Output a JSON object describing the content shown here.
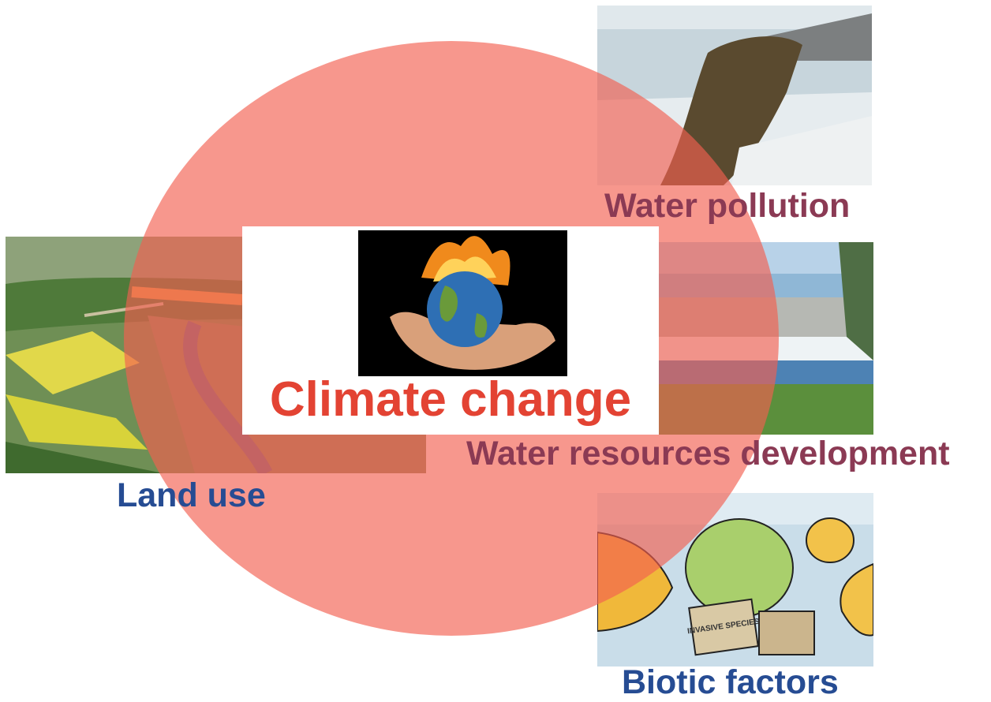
{
  "title": "Climate change",
  "labels": {
    "water_pollution": "Water pollution",
    "water_resources_dev": "Water resources development",
    "land_use": "Land use",
    "biotic_factors": "Biotic factors"
  },
  "graphic": {
    "circle_color": "#f36050",
    "title_color": "#e34333",
    "label_color_blue": "#264c93",
    "label_color_maroon": "#8b3a54"
  },
  "photos": {
    "land": "aerial-farmland-photo",
    "pollution": "sewage-outfall-photo",
    "dam": "dam-river-photo",
    "biotic": "invasive-species-cartoon",
    "center": "globe-in-hand-fire-photo"
  },
  "cartoon_text": "INVASIVE SPECIES"
}
